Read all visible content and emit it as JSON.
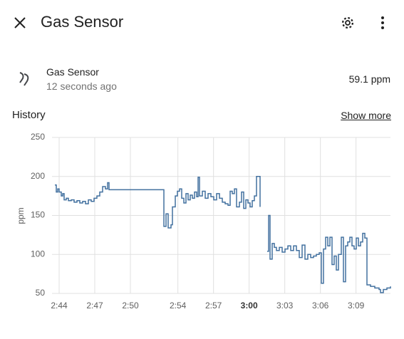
{
  "header": {
    "title": "Gas Sensor"
  },
  "entity": {
    "name": "Gas Sensor",
    "last_changed": "12 seconds ago",
    "state": "59.1 ppm"
  },
  "history": {
    "heading": "History",
    "show_more": "Show more"
  },
  "chart_data": {
    "type": "line",
    "step": true,
    "y_label": "ppm",
    "grid": true,
    "xlim": [
      163.4,
      191.9
    ],
    "ylim": [
      50,
      250
    ],
    "yticks": [
      50,
      100,
      150,
      200,
      250
    ],
    "xticks": [
      {
        "value": 164,
        "label": "2:44"
      },
      {
        "value": 167,
        "label": "2:47"
      },
      {
        "value": 170,
        "label": "2:50"
      },
      {
        "value": 174,
        "label": "2:54"
      },
      {
        "value": 177,
        "label": "2:57"
      },
      {
        "value": 180,
        "label": "3:00",
        "bold": true
      },
      {
        "value": 183,
        "label": "3:03"
      },
      {
        "value": 186,
        "label": "3:06"
      },
      {
        "value": 189,
        "label": "3:09"
      }
    ],
    "series": [
      {
        "name": "Gas Sensor",
        "color": "#42709f",
        "x": [
          163.64,
          163.76,
          163.88,
          164,
          164.18,
          164.3,
          164.42,
          164.6,
          164.78,
          165.02,
          165.26,
          165.5,
          165.74,
          165.98,
          166.22,
          166.46,
          166.7,
          166.94,
          167.18,
          167.42,
          167.66,
          167.9,
          168.08,
          168.2,
          172.82,
          173,
          173.18,
          173.42,
          173.54,
          173.78,
          173.96,
          174.14,
          174.32,
          174.5,
          174.68,
          174.86,
          175.04,
          175.22,
          175.4,
          175.58,
          175.7,
          175.82,
          176.06,
          176.3,
          176.54,
          176.78,
          177.02,
          177.26,
          177.5,
          177.74,
          177.98,
          178.22,
          178.4,
          178.58,
          178.76,
          178.94,
          179.18,
          179.36,
          179.54,
          179.72,
          179.9,
          180.08,
          180.26,
          180.44,
          180.62,
          180.92,
          181.22,
          181.52,
          181.64,
          181.76,
          181.94,
          182.12,
          182.3,
          182.54,
          182.78,
          183.02,
          183.26,
          183.5,
          183.74,
          183.98,
          184.22,
          184.46,
          184.7,
          184.94,
          185.18,
          185.42,
          185.66,
          185.9,
          186.08,
          186.26,
          186.44,
          186.62,
          186.8,
          186.98,
          187.16,
          187.34,
          187.52,
          187.76,
          187.94,
          188.12,
          188.3,
          188.48,
          188.66,
          188.84,
          189.02,
          189.2,
          189.38,
          189.56,
          189.74,
          189.92,
          190.22,
          190.58,
          190.94,
          191.06,
          191.3,
          191.6,
          191.9
        ],
        "values": [
          189,
          180,
          184,
          180,
          175,
          178,
          170,
          172,
          169,
          170,
          167,
          169,
          166,
          168,
          165,
          170,
          168,
          172,
          175,
          180,
          187,
          184,
          192,
          183,
          136,
          152,
          134,
          138,
          161,
          175,
          181,
          184,
          172,
          166,
          178,
          170,
          176,
          172,
          180,
          174,
          199,
          175,
          181,
          172,
          178,
          174,
          170,
          178,
          172,
          167,
          165,
          163,
          181,
          178,
          184,
          161,
          167,
          180,
          159,
          170,
          166,
          161,
          169,
          175,
          200,
          161,
          null,
          104,
          150,
          94,
          114,
          109,
          105,
          109,
          103,
          107,
          111,
          105,
          111,
          105,
          96,
          112,
          94,
          100,
          96,
          98,
          100,
          102,
          63,
          107,
          122,
          111,
          122,
          87,
          98,
          80,
          100,
          122,
          65,
          111,
          116,
          122,
          111,
          107,
          121,
          111,
          116,
          127,
          121,
          61,
          59,
          57,
          55,
          51,
          55,
          57,
          59
        ]
      }
    ]
  }
}
